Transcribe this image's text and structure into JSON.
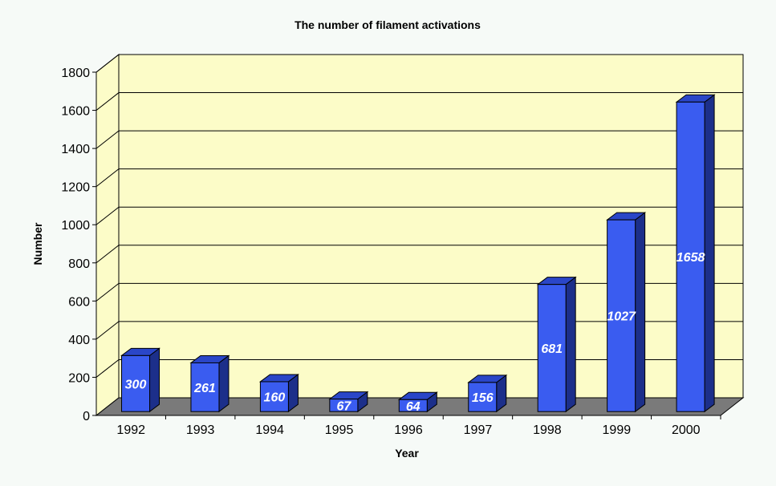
{
  "chart_data": {
    "type": "bar",
    "title": "The number of filament activations",
    "xlabel": "Year",
    "ylabel": "Number",
    "categories": [
      "1992",
      "1993",
      "1994",
      "1995",
      "1996",
      "1997",
      "1998",
      "1999",
      "2000"
    ],
    "values": [
      300,
      261,
      160,
      67,
      64,
      156,
      681,
      1027,
      1658
    ],
    "data_labels": [
      "300",
      "261",
      "160",
      "67",
      "64",
      "156",
      "681",
      "1027",
      "1658"
    ],
    "yticks": [
      "0",
      "200",
      "400",
      "600",
      "800",
      "1000",
      "1200",
      "1400",
      "1600",
      "1800"
    ],
    "ylim": [
      0,
      1800
    ],
    "grid": true,
    "three_d": true,
    "legend": "none"
  },
  "colors": {
    "wall": "#fcfcc8",
    "floor": "#7a7a7a",
    "bar_front": "#3a5cf0",
    "bar_side": "#1c2f8a",
    "bar_top": "#2a46c8",
    "grid": "#000000",
    "background": "#f6faf7"
  }
}
